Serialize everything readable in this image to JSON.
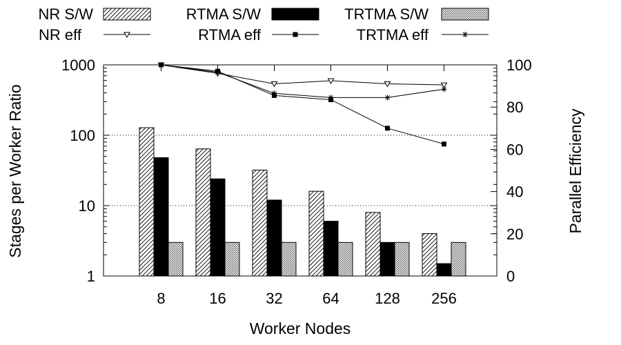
{
  "chart_data": {
    "type": "bar",
    "title": "",
    "xlabel": "Worker Nodes",
    "ylabel": "Stages per Worker Ratio",
    "y2label": "Parallel Efficiency",
    "categories": [
      "8",
      "16",
      "32",
      "64",
      "128",
      "256"
    ],
    "y_scale": "log",
    "ylim": [
      1,
      1000
    ],
    "y_ticks": [
      1,
      10,
      100,
      1000
    ],
    "y_tick_labels": [
      "1",
      "10",
      "100",
      "1000"
    ],
    "y2lim": [
      0,
      100
    ],
    "y2_ticks": [
      0,
      20,
      40,
      60,
      80,
      100
    ],
    "y2_tick_labels": [
      "0",
      "20",
      "40",
      "60",
      "80",
      "100"
    ],
    "grid": "horizontal dotted at y=10 and y=100",
    "legend_position": "top",
    "bar_series": [
      {
        "name": "NR S/W",
        "values": [
          128,
          64,
          32,
          16,
          8,
          4
        ],
        "pattern": "diagonal-hatch"
      },
      {
        "name": "RTMA S/W",
        "values": [
          48,
          24,
          12,
          6,
          3,
          1.5
        ],
        "pattern": "solid-black"
      },
      {
        "name": "TRTMA S/W",
        "values": [
          3,
          3,
          3,
          3,
          3,
          3
        ],
        "pattern": "crosshatch-gray"
      }
    ],
    "line_series": [
      {
        "name": "NR eff",
        "values": [
          100,
          96,
          91,
          92.5,
          91,
          90.5
        ],
        "marker": "triangle-down-open"
      },
      {
        "name": "RTMA eff",
        "values": [
          100,
          97,
          85.5,
          83.5,
          70,
          62.5
        ],
        "marker": "square-filled"
      },
      {
        "name": "TRTMA eff",
        "values": [
          100,
          96.5,
          86.5,
          84.5,
          84.5,
          88.5
        ],
        "marker": "asterisk"
      }
    ]
  }
}
